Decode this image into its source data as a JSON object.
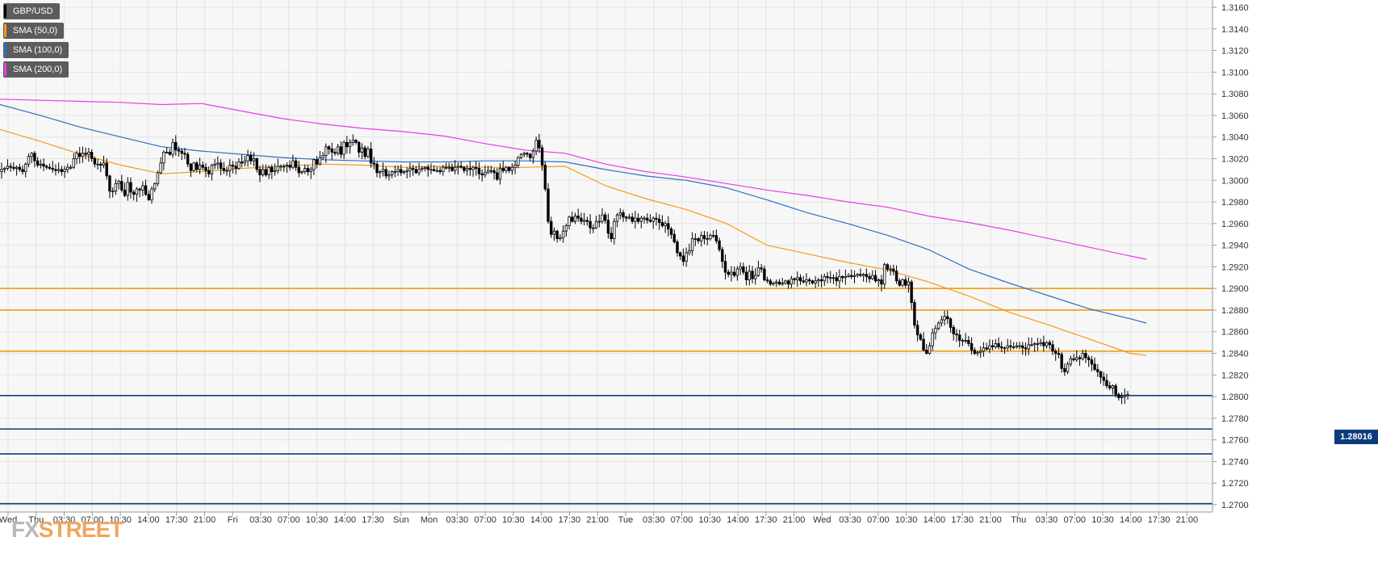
{
  "legend": [
    {
      "label": "GBP/USD",
      "color": "#000000"
    },
    {
      "label": "SMA (50,0)",
      "color": "#f39c12"
    },
    {
      "label": "SMA (100,0)",
      "color": "#2c6ec4"
    },
    {
      "label": "SMA (200,0)",
      "color": "#e63ce6"
    }
  ],
  "price_label": "1.28016",
  "watermark": {
    "fx": "FX",
    "street": "STREET"
  },
  "chart_data": {
    "type": "candlestick",
    "symbol": "GBP/USD",
    "ylim": [
      1.27,
      1.316
    ],
    "y_ticks": [
      "1.3160",
      "1.3140",
      "1.3120",
      "1.3100",
      "1.3080",
      "1.3060",
      "1.3040",
      "1.3020",
      "1.3000",
      "1.2980",
      "1.2960",
      "1.2940",
      "1.2920",
      "1.2900",
      "1.2880",
      "1.2860",
      "1.2840",
      "1.2820",
      "1.2800",
      "1.2780",
      "1.2760",
      "1.2740",
      "1.2720",
      "1.2700"
    ],
    "x_ticks": [
      "Wed",
      "Thu",
      "03:30",
      "07:00",
      "10:30",
      "14:00",
      "17:30",
      "21:00",
      "Fri",
      "03:30",
      "07:00",
      "10:30",
      "14:00",
      "17:30",
      "Sun",
      "Mon",
      "03:30",
      "07:00",
      "10:30",
      "14:00",
      "17:30",
      "21:00",
      "Tue",
      "03:30",
      "07:00",
      "10:30",
      "14:00",
      "17:30",
      "21:00",
      "Wed",
      "03:30",
      "07:00",
      "10:30",
      "14:00",
      "17:30",
      "21:00",
      "Thu",
      "03:30",
      "07:00",
      "10:30",
      "14:00",
      "17:30",
      "21:00"
    ],
    "grid": true,
    "last_price": 1.28016,
    "horizontal_levels": {
      "resistance": [
        1.29,
        1.288,
        1.2842
      ],
      "support": [
        1.2801,
        1.277,
        1.2747,
        1.2701
      ],
      "resistance_color": "#f39c12",
      "support_color": "#0c3b7c"
    },
    "series": [
      {
        "name": "SMA (50,0)",
        "color": "#f39c12",
        "x": [
          0,
          50,
          100,
          150,
          200,
          250,
          300,
          350,
          400,
          450,
          500,
          550,
          600,
          650,
          700,
          750,
          800,
          850,
          900,
          950,
          1000,
          1050,
          1100,
          1150,
          1200,
          1250,
          1300,
          1350,
          1400,
          1420
        ],
        "values": [
          1.3047,
          1.3036,
          1.3024,
          1.3014,
          1.3006,
          1.3008,
          1.3011,
          1.3013,
          1.3015,
          1.3014,
          1.3012,
          1.3013,
          1.3012,
          1.3012,
          1.3013,
          1.2995,
          1.2983,
          1.2973,
          1.296,
          1.294,
          1.2932,
          1.2924,
          1.2917,
          1.2906,
          1.2893,
          1.2878,
          1.2866,
          1.2853,
          1.284,
          1.2838
        ]
      },
      {
        "name": "SMA (100,0)",
        "color": "#2c6ec4",
        "x": [
          0,
          50,
          100,
          150,
          200,
          250,
          300,
          350,
          400,
          450,
          500,
          550,
          600,
          650,
          700,
          750,
          800,
          850,
          900,
          950,
          1000,
          1050,
          1100,
          1150,
          1200,
          1250,
          1300,
          1350,
          1400,
          1420
        ],
        "values": [
          1.307,
          1.306,
          1.3049,
          1.304,
          1.3031,
          1.3027,
          1.3024,
          1.3021,
          1.3019,
          1.3018,
          1.3017,
          1.3017,
          1.3018,
          1.3018,
          1.3017,
          1.301,
          1.3004,
          1.3,
          1.2993,
          1.2982,
          1.297,
          1.296,
          1.2949,
          1.2936,
          1.2918,
          1.2905,
          1.2893,
          1.2881,
          1.2872,
          1.2868
        ]
      },
      {
        "name": "SMA (200,0)",
        "color": "#e63ce6",
        "x": [
          0,
          50,
          100,
          150,
          200,
          250,
          300,
          350,
          400,
          450,
          500,
          550,
          600,
          650,
          700,
          750,
          800,
          850,
          900,
          950,
          1000,
          1050,
          1100,
          1150,
          1200,
          1250,
          1300,
          1350,
          1400,
          1420
        ],
        "values": [
          1.3075,
          1.3074,
          1.3073,
          1.3072,
          1.307,
          1.3071,
          1.3064,
          1.3057,
          1.3052,
          1.3048,
          1.3045,
          1.3041,
          1.3034,
          1.3028,
          1.3025,
          1.3015,
          1.3008,
          1.3003,
          1.2997,
          1.2991,
          1.2986,
          1.298,
          1.2975,
          1.2967,
          1.2961,
          1.2954,
          1.2946,
          1.2938,
          1.293,
          1.2927
        ]
      }
    ],
    "candles": {
      "x_start": 2,
      "x_step": 3.72,
      "close": [
        1.301,
        1.3011,
        1.3013,
        1.3012,
        1.3011,
        1.3012,
        1.301,
        1.3008,
        1.3015,
        1.3022,
        1.3025,
        1.3018,
        1.3014,
        1.3015,
        1.3013,
        1.3012,
        1.3011,
        1.301,
        1.3009,
        1.301,
        1.3008,
        1.301,
        1.3012,
        1.3012,
        1.302,
        1.3025,
        1.3022,
        1.3025,
        1.3024,
        1.3026,
        1.302,
        1.3015,
        1.3015,
        1.3014,
        1.3016,
        1.3004,
        1.299,
        1.299,
        1.2997,
        1.2999,
        1.2991,
        1.2986,
        1.2998,
        1.2989,
        1.2987,
        1.2992,
        1.2991,
        1.2995,
        1.2987,
        1.2982,
        1.2992,
        1.2997,
        1.3007,
        1.3016,
        1.3026,
        1.3026,
        1.3024,
        1.3035,
        1.3028,
        1.3027,
        1.3025,
        1.3024,
        1.3015,
        1.3009,
        1.3016,
        1.301,
        1.3014,
        1.3012,
        1.3009,
        1.3006,
        1.3014,
        1.3015,
        1.3016,
        1.3011,
        1.3009,
        1.3009,
        1.3014,
        1.3013,
        1.3011,
        1.3017,
        1.3016,
        1.3018,
        1.3023,
        1.3018,
        1.302,
        1.301,
        1.3005,
        1.301,
        1.3005,
        1.3012,
        1.3008,
        1.3009,
        1.3013,
        1.3013,
        1.3013,
        1.3014,
        1.3012,
        1.3018,
        1.3012,
        1.3007,
        1.3008,
        1.3011,
        1.3008,
        1.301,
        1.3019,
        1.3015,
        1.3021,
        1.3023,
        1.3031,
        1.3029,
        1.3026,
        1.3025,
        1.3031,
        1.3024,
        1.3035,
        1.3031,
        1.3035,
        1.3037,
        1.3035,
        1.3026,
        1.303,
        1.3022,
        1.3029,
        1.3016,
        1.3015,
        1.3007,
        1.3008,
        1.301,
        1.3004,
        1.3005,
        1.3008,
        1.3008,
        1.301,
        1.3007,
        1.3008,
        1.3009,
        1.3011,
        1.301,
        1.3007,
        1.301,
        1.3011,
        1.3012,
        1.301,
        1.301,
        1.3009,
        1.3009,
        1.3008,
        1.3012,
        1.3012,
        1.3012,
        1.3009,
        1.3012,
        1.3013,
        1.3012,
        1.3009,
        1.3011,
        1.301,
        1.3012,
        1.3011,
        1.3006,
        1.3005,
        1.3007,
        1.3009,
        1.3009,
        1.3007,
        1.3001,
        1.3011,
        1.3009,
        1.3012,
        1.3009,
        1.3012,
        1.3014,
        1.3021,
        1.3024,
        1.3025,
        1.3024,
        1.3021,
        1.3027,
        1.3037,
        1.303,
        1.3014,
        1.2992,
        1.2962,
        1.295,
        1.2953,
        1.2946,
        1.2947,
        1.2953,
        1.2958,
        1.2966,
        1.2962,
        1.2967,
        1.2965,
        1.2962,
        1.2963,
        1.2962,
        1.2956,
        1.2956,
        1.2962,
        1.2962,
        1.2968,
        1.2963,
        1.2951,
        1.2946,
        1.2962,
        1.2968,
        1.297,
        1.2966,
        1.2965,
        1.2966,
        1.2962,
        1.2965,
        1.2962,
        1.2965,
        1.2965,
        1.2963,
        1.2962,
        1.2965,
        1.2964,
        1.2961,
        1.2958,
        1.296,
        1.2955,
        1.295,
        1.2943,
        1.2933,
        1.293,
        1.2925,
        1.2933,
        1.2935,
        1.2946,
        1.2946,
        1.2944,
        1.2949,
        1.2946,
        1.2946,
        1.2949,
        1.2949,
        1.2944,
        1.2936,
        1.2925,
        1.2915,
        1.2913,
        1.2915,
        1.2912,
        1.2918,
        1.292,
        1.2915,
        1.2908,
        1.2916,
        1.2909,
        1.2912,
        1.2919,
        1.2918,
        1.2908,
        1.2907,
        1.2904,
        1.2905,
        1.2906,
        1.2904,
        1.2905,
        1.2907,
        1.2904,
        1.2909,
        1.2908,
        1.291,
        1.2907,
        1.2906,
        1.2908,
        1.2907,
        1.2905,
        1.2907,
        1.2908,
        1.2907,
        1.2911,
        1.291,
        1.291,
        1.291,
        1.2907,
        1.2911,
        1.291,
        1.2911,
        1.2912,
        1.2911,
        1.2912,
        1.2913,
        1.2912,
        1.2913,
        1.2911,
        1.2909,
        1.2912,
        1.2907,
        1.2908,
        1.2904,
        1.2922,
        1.2918,
        1.2918,
        1.2916,
        1.2907,
        1.2903,
        1.2908,
        1.2903,
        1.2906,
        1.2887,
        1.2866,
        1.2857,
        1.2853,
        1.2843,
        1.284,
        1.2847,
        1.2859,
        1.2863,
        1.2868,
        1.2871,
        1.2874,
        1.2872,
        1.2864,
        1.2858,
        1.2857,
        1.2852,
        1.2852,
        1.2852,
        1.2849,
        1.2843,
        1.284,
        1.2841,
        1.2842,
        1.2845,
        1.2844,
        1.2847,
        1.2846,
        1.2849,
        1.2846,
        1.2845,
        1.2845,
        1.2847,
        1.2846,
        1.2846,
        1.2847,
        1.2847,
        1.2845,
        1.2844,
        1.2848,
        1.2848,
        1.2849,
        1.2849,
        1.285,
        1.2847,
        1.285,
        1.2848,
        1.2842,
        1.284,
        1.2839,
        1.2826,
        1.2823,
        1.283,
        1.2835,
        1.2834,
        1.2836,
        1.2835,
        1.284,
        1.2836,
        1.2834,
        1.283,
        1.2825,
        1.2823,
        1.2818,
        1.2815,
        1.281,
        1.2808,
        1.281,
        1.2802,
        1.2799,
        1.28,
        1.2801,
        1.2802
      ],
      "seed": 17
    }
  }
}
